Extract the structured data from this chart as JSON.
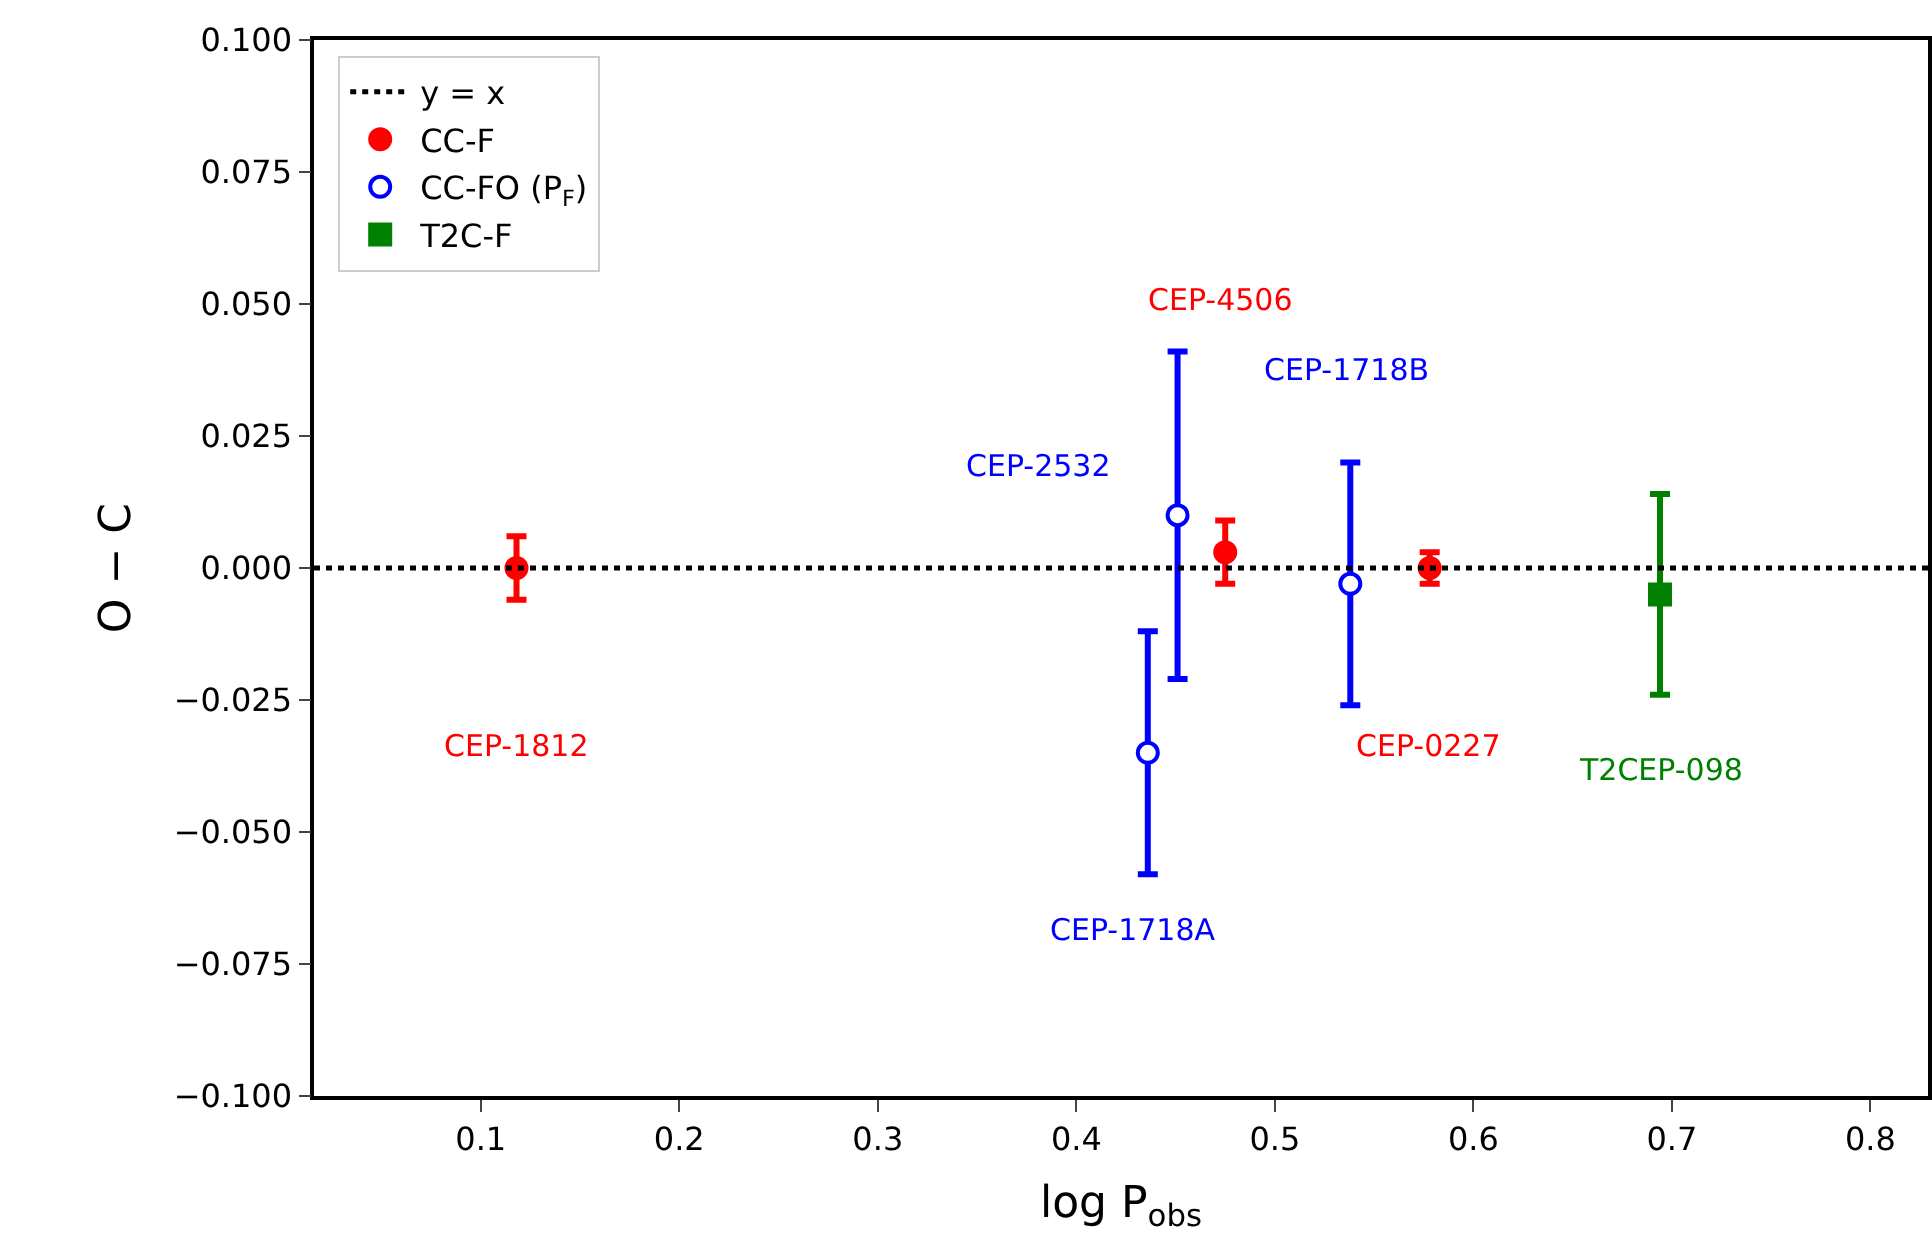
{
  "chart_data": {
    "type": "scatter",
    "xlabel": "log P$_{obs}$",
    "ylabel": "O − C",
    "xlim": [
      0.016,
      0.829
    ],
    "xticks": [
      0.1,
      0.2,
      0.3,
      0.4,
      0.5,
      0.6,
      0.7,
      0.8
    ],
    "ylim": [
      -0.1,
      0.1
    ],
    "yticks": [
      {
        "value": -0.1,
        "label": "−0.100"
      },
      {
        "value": -0.075,
        "label": "−0.075"
      },
      {
        "value": -0.05,
        "label": "−0.050"
      },
      {
        "value": -0.025,
        "label": "−0.025"
      },
      {
        "value": 0,
        "label": "0.000"
      },
      {
        "value": 0.025,
        "label": "0.025"
      },
      {
        "value": 0.05,
        "label": "0.050"
      },
      {
        "value": 0.075,
        "label": "0.075"
      },
      {
        "value": 0.1,
        "label": "0.100"
      }
    ],
    "legend": "top left",
    "ref_lines": [
      {
        "axis": "y",
        "value": 0,
        "label": "y = x",
        "color": "#000000",
        "line_style": "dotted"
      }
    ],
    "series": [
      {
        "name": "CC-F",
        "color": "#ff0000",
        "marker": "circle",
        "x": [
          0.118,
          0.475,
          0.578
        ],
        "values": [
          0.0,
          0.003,
          0.0
        ],
        "errors": [
          0.006,
          0.006,
          0.003
        ]
      },
      {
        "name": "CC-FO (P$_{F}$)",
        "color": "#0000ff",
        "marker": "circle-open",
        "x": [
          0.436,
          0.451,
          0.538
        ],
        "values": [
          -0.035,
          0.01,
          -0.003
        ],
        "errors": [
          0.023,
          0.031,
          0.023
        ]
      },
      {
        "name": "T2C-F",
        "color": "#008000",
        "marker": "square",
        "x": [
          0.694
        ],
        "values": [
          -0.005
        ],
        "errors": [
          0.019
        ]
      }
    ],
    "annotations": [
      "CEP-1812",
      "CEP-1718A",
      "CEP-2532",
      "CEP-4506",
      "CEP-1718B",
      "CEP-0227",
      "T2CEP-098"
    ]
  }
}
